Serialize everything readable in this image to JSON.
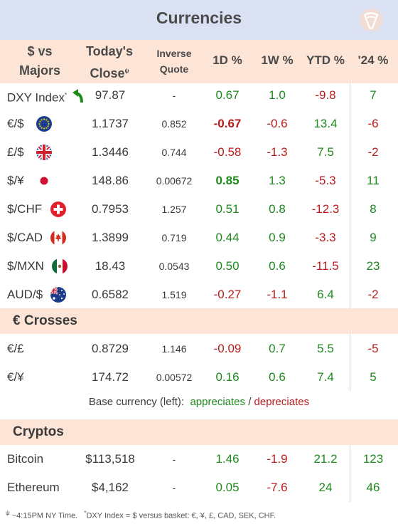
{
  "title": "Currencies",
  "headers": {
    "col1_line1": "$ vs",
    "col1_line2": "Majors",
    "col2_line1": "Today's",
    "col2_line2": "Close",
    "col2_sup": "ψ",
    "col3_line1": "Inverse",
    "col3_line2": "Quote",
    "col4": "1D %",
    "col5": "1W %",
    "col6": "YTD %",
    "col7": "'24 %"
  },
  "majors": [
    {
      "name": "DXY Index",
      "sup": "*",
      "icon": "up-arrow-icon",
      "close": "97.87",
      "inverse": "-",
      "d1": "0.67",
      "w1": "1.0",
      "ytd": "-9.8",
      "y24": "7"
    },
    {
      "name": "€/$",
      "icon": "eu-flag-icon",
      "close": "1.1737",
      "inverse": "0.852",
      "d1": "-0.67",
      "w1": "-0.6",
      "ytd": "13.4",
      "y24": "-6"
    },
    {
      "name": "£/$",
      "icon": "uk-flag-icon",
      "close": "1.3446",
      "inverse": "0.744",
      "d1": "-0.58",
      "w1": "-1.3",
      "ytd": "7.5",
      "y24": "-2"
    },
    {
      "name": "$/¥",
      "icon": "japan-flag-icon",
      "close": "148.86",
      "inverse": "0.00672",
      "d1": "0.85",
      "w1": "1.3",
      "ytd": "-5.3",
      "y24": "11"
    },
    {
      "name": "$/CHF",
      "icon": "swiss-flag-icon",
      "close": "0.7953",
      "inverse": "1.257",
      "d1": "0.51",
      "w1": "0.8",
      "ytd": "-12.3",
      "y24": "8"
    },
    {
      "name": "$/CAD",
      "icon": "canada-flag-icon",
      "close": "1.3899",
      "inverse": "0.719",
      "d1": "0.44",
      "w1": "0.9",
      "ytd": "-3.3",
      "y24": "9"
    },
    {
      "name": "$/MXN",
      "icon": "mexico-flag-icon",
      "close": "18.43",
      "inverse": "0.0543",
      "d1": "0.50",
      "w1": "0.6",
      "ytd": "-11.5",
      "y24": "23"
    },
    {
      "name": "AUD/$",
      "icon": "australia-flag-icon",
      "close": "0.6582",
      "inverse": "1.519",
      "d1": "-0.27",
      "w1": "-1.1",
      "ytd": "6.4",
      "y24": "-2"
    }
  ],
  "crosses_title": "€ Crosses",
  "crosses": [
    {
      "name": "€/£",
      "close": "0.8729",
      "inverse": "1.146",
      "d1": "-0.09",
      "w1": "0.7",
      "ytd": "5.5",
      "y24": "-5"
    },
    {
      "name": "€/¥",
      "close": "174.72",
      "inverse": "0.00572",
      "d1": "0.16",
      "w1": "0.6",
      "ytd": "7.4",
      "y24": "5"
    }
  ],
  "legend": {
    "prefix": "Base currency (left):",
    "appreciates": "appreciates",
    "sep": "/",
    "depreciates": "depreciates"
  },
  "cryptos_title": "Cryptos",
  "cryptos": [
    {
      "name": "Bitcoin",
      "close": "$113,518",
      "inverse": "-",
      "d1": "1.46",
      "w1": "-1.9",
      "ytd": "21.2",
      "y24": "123"
    },
    {
      "name": "Ethereum",
      "close": "$4,162",
      "inverse": "-",
      "d1": "0.05",
      "w1": "-7.6",
      "ytd": "24",
      "y24": "46"
    }
  ],
  "footnote": {
    "sup1": "ψ",
    "text1": " ~4:15PM NY Time.",
    "sup2": "*",
    "text2": "DXY Index = $ versus basket: €, ¥, £, CAD, SEK, CHF."
  },
  "colors": {
    "positive": "#1e8a1e",
    "negative": "#b81c1c",
    "header_bg": "#fce4d6",
    "title_bg": "#d9e1f2"
  }
}
